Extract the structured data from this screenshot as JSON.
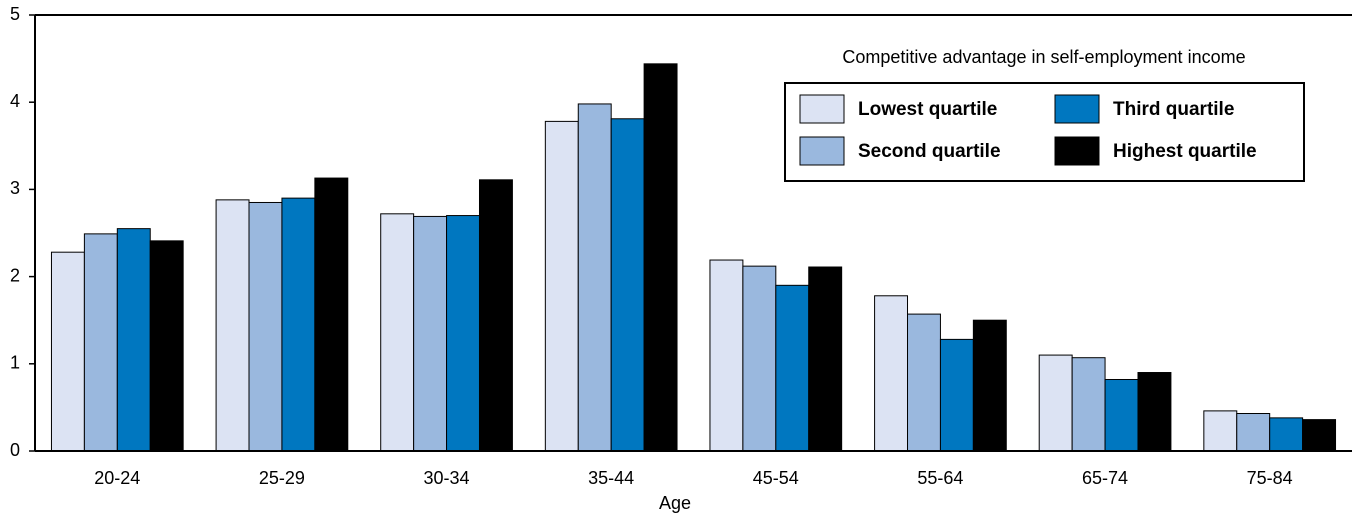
{
  "chart_data": {
    "type": "bar",
    "x_label": "Age",
    "legend_title": "Competitive advantage in self-employment income",
    "categories": [
      "20-24",
      "25-29",
      "30-34",
      "35-44",
      "45-54",
      "55-64",
      "65-74",
      "75-84"
    ],
    "series": [
      {
        "name": "Lowest quartile",
        "color": "#dce3f3",
        "values": [
          2.28,
          2.88,
          2.72,
          3.78,
          2.19,
          1.78,
          1.1,
          0.46
        ]
      },
      {
        "name": "Second quartile",
        "color": "#9ab8de",
        "values": [
          2.49,
          2.85,
          2.69,
          3.98,
          2.12,
          1.57,
          1.07,
          0.43
        ]
      },
      {
        "name": "Third quartile",
        "color": "#0077c0",
        "values": [
          2.55,
          2.9,
          2.7,
          3.81,
          1.9,
          1.28,
          0.82,
          0.38
        ]
      },
      {
        "name": "Highest quartile",
        "color": "#000000",
        "values": [
          2.41,
          3.13,
          3.11,
          4.44,
          2.11,
          1.5,
          0.9,
          0.36
        ]
      }
    ],
    "ylim": [
      0,
      5
    ],
    "yticks": [
      0,
      1,
      2,
      3,
      4,
      5
    ],
    "grid": false
  }
}
